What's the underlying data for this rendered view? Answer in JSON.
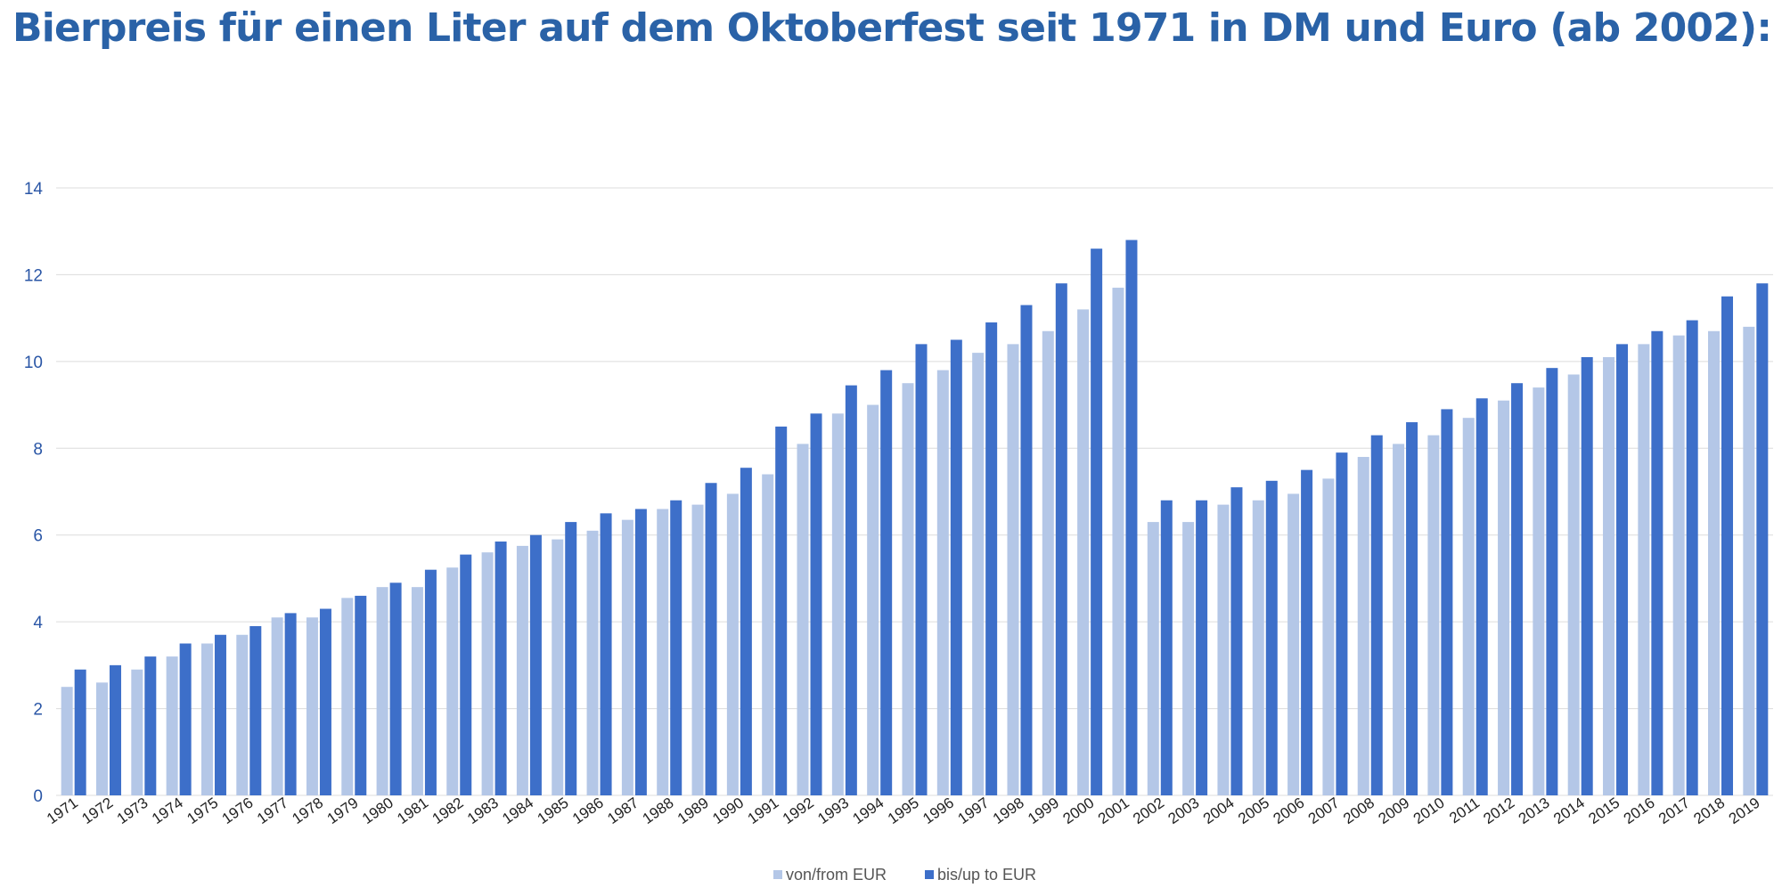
{
  "title": "Bierpreis für einen Liter auf dem Oktoberfest seit 1971 in DM und Euro (ab 2002):",
  "colors": {
    "title": "#2a62a7",
    "from_series": "#b4c7e7",
    "to_series": "#3d6fc9",
    "gridline": "#dcdcdc",
    "y_tick": "#2a56a6"
  },
  "chart_data": {
    "type": "bar",
    "title": "",
    "xlabel": "",
    "ylabel": "",
    "ylim": [
      0,
      14
    ],
    "yticks": [
      0,
      2,
      4,
      6,
      8,
      10,
      12,
      14
    ],
    "grid": true,
    "legend_position": "bottom-center",
    "categories": [
      "1971",
      "1972",
      "1973",
      "1974",
      "1975",
      "1976",
      "1977",
      "1978",
      "1979",
      "1980",
      "1981",
      "1982",
      "1983",
      "1984",
      "1985",
      "1986",
      "1987",
      "1988",
      "1989",
      "1990",
      "1991",
      "1992",
      "1993",
      "1994",
      "1995",
      "1996",
      "1997",
      "1998",
      "1999",
      "2000",
      "2001",
      "2002",
      "2003",
      "2004",
      "2005",
      "2006",
      "2007",
      "2008",
      "2009",
      "2010",
      "2011",
      "2012",
      "2013",
      "2014",
      "2015",
      "2016",
      "2017",
      "2018",
      "2019"
    ],
    "series": [
      {
        "name": "von/from EUR",
        "values": [
          2.5,
          2.6,
          2.9,
          3.2,
          3.5,
          3.7,
          4.1,
          4.1,
          4.55,
          4.8,
          4.8,
          5.25,
          5.6,
          5.75,
          5.9,
          6.1,
          6.35,
          6.6,
          6.7,
          6.95,
          7.4,
          8.1,
          8.8,
          9.0,
          9.5,
          9.8,
          10.2,
          10.4,
          10.7,
          11.2,
          11.7,
          6.3,
          6.3,
          6.7,
          6.8,
          6.95,
          7.3,
          7.8,
          8.1,
          8.3,
          8.7,
          9.1,
          9.4,
          9.7,
          10.1,
          10.4,
          10.6,
          10.7,
          10.8
        ]
      },
      {
        "name": "bis/up to EUR",
        "values": [
          2.9,
          3.0,
          3.2,
          3.5,
          3.7,
          3.9,
          4.2,
          4.3,
          4.6,
          4.9,
          5.2,
          5.55,
          5.85,
          6.0,
          6.3,
          6.5,
          6.6,
          6.8,
          7.2,
          7.55,
          8.5,
          8.8,
          9.45,
          9.8,
          10.4,
          10.5,
          10.9,
          11.3,
          11.8,
          12.6,
          12.8,
          6.8,
          6.8,
          7.1,
          7.25,
          7.5,
          7.9,
          8.3,
          8.6,
          8.9,
          9.15,
          9.5,
          9.85,
          10.1,
          10.4,
          10.7,
          10.95,
          11.5,
          11.8
        ]
      }
    ]
  }
}
